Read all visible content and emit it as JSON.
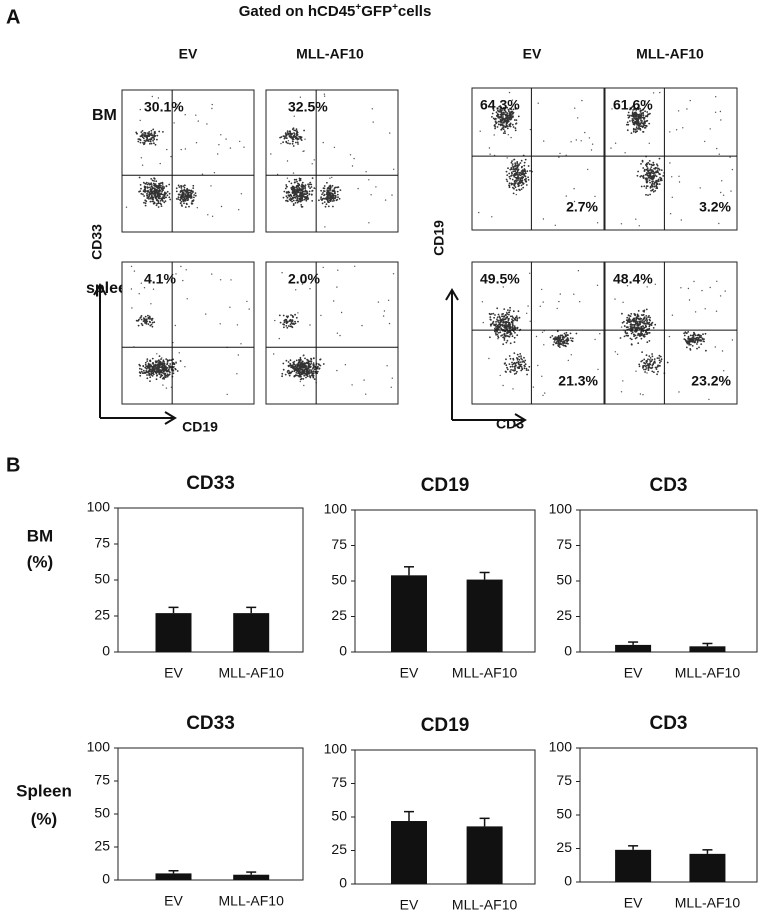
{
  "panel_a": {
    "label": "A",
    "title": [
      "Gated on hCD45",
      "+",
      "GFP",
      "+",
      "cells"
    ],
    "columns": [
      "EV",
      "MLL-AF10",
      "EV",
      "MLL-AF10"
    ],
    "rows": [
      "BM",
      "spleen"
    ],
    "axes": {
      "left_y": "CD33",
      "left_x": "CD19",
      "right_y": "CD19",
      "right_x": "CD3"
    },
    "plots": [
      {
        "ul": "30.1%"
      },
      {
        "ul": "32.5%"
      },
      {
        "ul": "4.1%"
      },
      {
        "ul": "2.0%"
      },
      {
        "ul": "64.3%",
        "lr": "2.7%"
      },
      {
        "ul": "61.6%",
        "lr": "3.2%"
      },
      {
        "ul": "49.5%",
        "lr": "21.3%"
      },
      {
        "ul": "48.4%",
        "lr": "23.2%"
      }
    ]
  },
  "panel_b": {
    "label": "B",
    "rows": [
      [
        "BM",
        "(%)"
      ],
      [
        "Spleen",
        "(%)"
      ]
    ]
  },
  "chart_data": [
    {
      "type": "bar",
      "title": "CD33",
      "categories": [
        "EV",
        "MLL-AF10"
      ],
      "values": [
        27,
        27
      ],
      "errors": [
        4,
        4
      ],
      "color": "#111111",
      "ylim": [
        0,
        100
      ],
      "yticks": [
        0,
        25,
        50,
        75,
        100
      ]
    },
    {
      "type": "bar",
      "title": "CD19",
      "categories": [
        "EV",
        "MLL-AF10"
      ],
      "values": [
        54,
        51
      ],
      "errors": [
        6,
        5
      ],
      "color": "#111111",
      "ylim": [
        0,
        100
      ],
      "yticks": [
        0,
        25,
        50,
        75,
        100
      ]
    },
    {
      "type": "bar",
      "title": "CD3",
      "categories": [
        "EV",
        "MLL-AF10"
      ],
      "values": [
        5,
        4
      ],
      "errors": [
        2,
        2
      ],
      "color": "#111111",
      "ylim": [
        0,
        100
      ],
      "yticks": [
        0,
        25,
        50,
        75,
        100
      ]
    },
    {
      "type": "bar",
      "title": "CD33",
      "categories": [
        "EV",
        "MLL-AF10"
      ],
      "values": [
        5,
        4
      ],
      "errors": [
        2,
        2
      ],
      "color": "#111111",
      "ylim": [
        0,
        100
      ],
      "yticks": [
        0,
        25,
        50,
        75,
        100
      ]
    },
    {
      "type": "bar",
      "title": "CD19",
      "categories": [
        "EV",
        "MLL-AF10"
      ],
      "values": [
        47,
        43
      ],
      "errors": [
        7,
        6
      ],
      "color": "#111111",
      "ylim": [
        0,
        100
      ],
      "yticks": [
        0,
        25,
        50,
        75,
        100
      ]
    },
    {
      "type": "bar",
      "title": "CD3",
      "categories": [
        "EV",
        "MLL-AF10"
      ],
      "values": [
        24,
        21
      ],
      "errors": [
        3,
        3
      ],
      "color": "#111111",
      "ylim": [
        0,
        100
      ],
      "yticks": [
        0,
        25,
        50,
        75,
        100
      ]
    }
  ]
}
